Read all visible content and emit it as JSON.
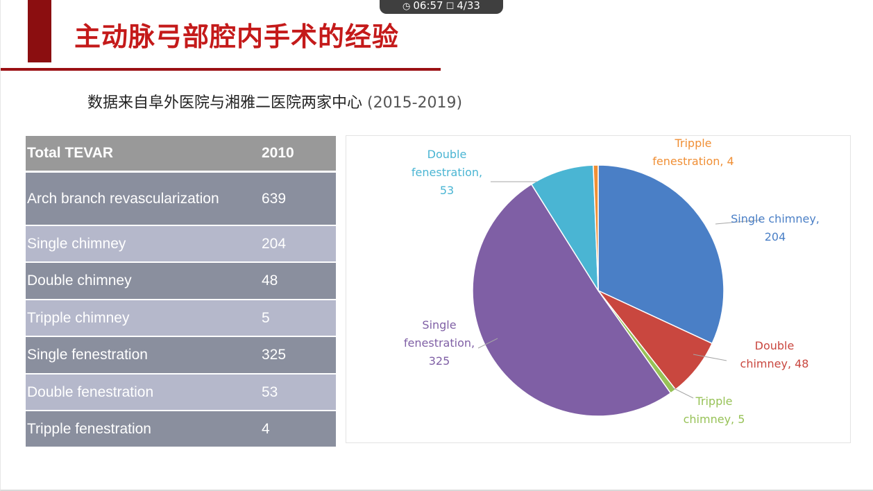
{
  "header": {
    "title": "主动脉弓部腔内手术的经验",
    "player_time": "06:57",
    "page_indicator": "4/33",
    "clock_icon": "clock-icon",
    "slide_icon": "slide-icon"
  },
  "subtitle": {
    "text": "数据来自阜外医院与湘雅二医院两家中心",
    "years": "(2015-2019)"
  },
  "table": {
    "header": {
      "label": "Total TEVAR",
      "value": "2010"
    },
    "rows": [
      {
        "label": "Arch branch revascularization",
        "value": "639"
      },
      {
        "label": "Single chimney",
        "value": "204"
      },
      {
        "label": "Double chimney",
        "value": "48"
      },
      {
        "label": "Tripple chimney",
        "value": "5"
      },
      {
        "label": "Single fenestration",
        "value": "325"
      },
      {
        "label": "Double fenestration",
        "value": "53"
      },
      {
        "label": "Tripple fenestration",
        "value": "4"
      }
    ]
  },
  "chart_data": {
    "type": "pie",
    "title": "",
    "slices": [
      {
        "name": "Single chimney",
        "value": 204,
        "color": "#4a7fc6",
        "label_lines": [
          "Single chimney,",
          "204"
        ]
      },
      {
        "name": "Double chimney",
        "value": 48,
        "color": "#c9473f",
        "label_lines": [
          "Double",
          "chimney, 48"
        ]
      },
      {
        "name": "Tripple chimney",
        "value": 5,
        "color": "#97c257",
        "label_lines": [
          "Tripple",
          "chimney, 5"
        ]
      },
      {
        "name": "Single fenestration",
        "value": 325,
        "color": "#7f5fa5",
        "label_lines": [
          "Single",
          "fenestration,",
          "325"
        ]
      },
      {
        "name": "Double fenestration",
        "value": 53,
        "color": "#4ab5d3",
        "label_lines": [
          "Double",
          "fenestration,",
          "53"
        ]
      },
      {
        "name": "Tripple fenestration",
        "value": 4,
        "color": "#f08f35",
        "label_lines": [
          "Tripple",
          "fenestration, 4"
        ]
      }
    ]
  }
}
